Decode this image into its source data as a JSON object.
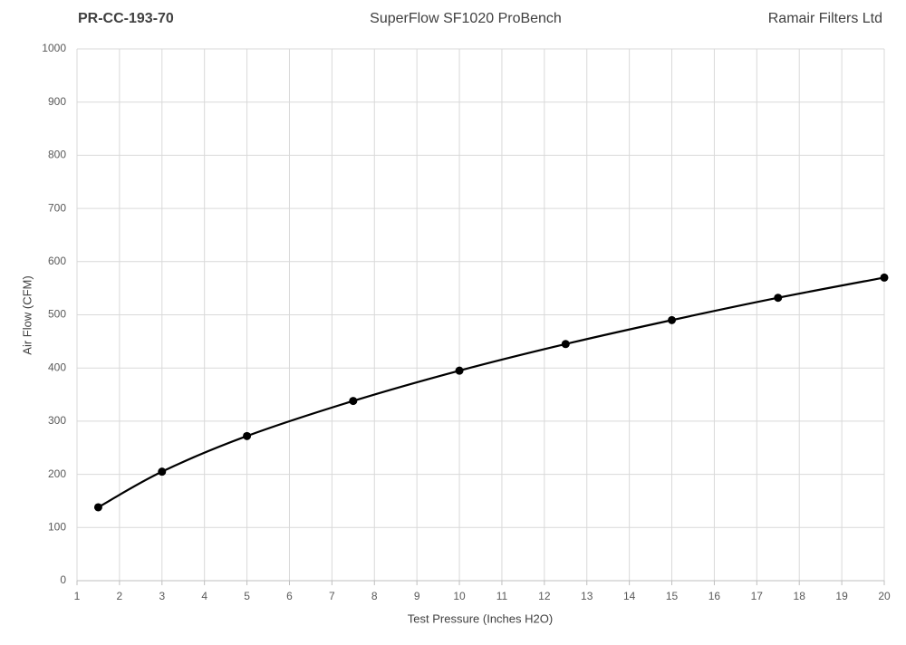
{
  "chart_data": {
    "type": "line",
    "header_left": "PR-CC-193-70",
    "title": "SuperFlow SF1020 ProBench",
    "header_right": "Ramair Filters Ltd",
    "x_label": "Test Pressure (Inches H2O)",
    "y_label": "Air Flow (CFM)",
    "x": [
      1.5,
      3,
      5,
      7.5,
      10,
      12.5,
      15,
      17.5,
      20
    ],
    "values": [
      138,
      205,
      272,
      338,
      395,
      445,
      490,
      532,
      570
    ],
    "color": "#000000",
    "xlim": [
      1,
      20
    ],
    "xticks": [
      1,
      2,
      3,
      4,
      5,
      6,
      7,
      8,
      9,
      10,
      11,
      12,
      13,
      14,
      15,
      16,
      17,
      18,
      19,
      20
    ],
    "ylim": [
      0,
      1000
    ],
    "yticks": [
      0,
      100,
      200,
      300,
      400,
      500,
      600,
      700,
      800,
      900,
      1000
    ],
    "grid": true,
    "smooth": true,
    "markers": true
  }
}
